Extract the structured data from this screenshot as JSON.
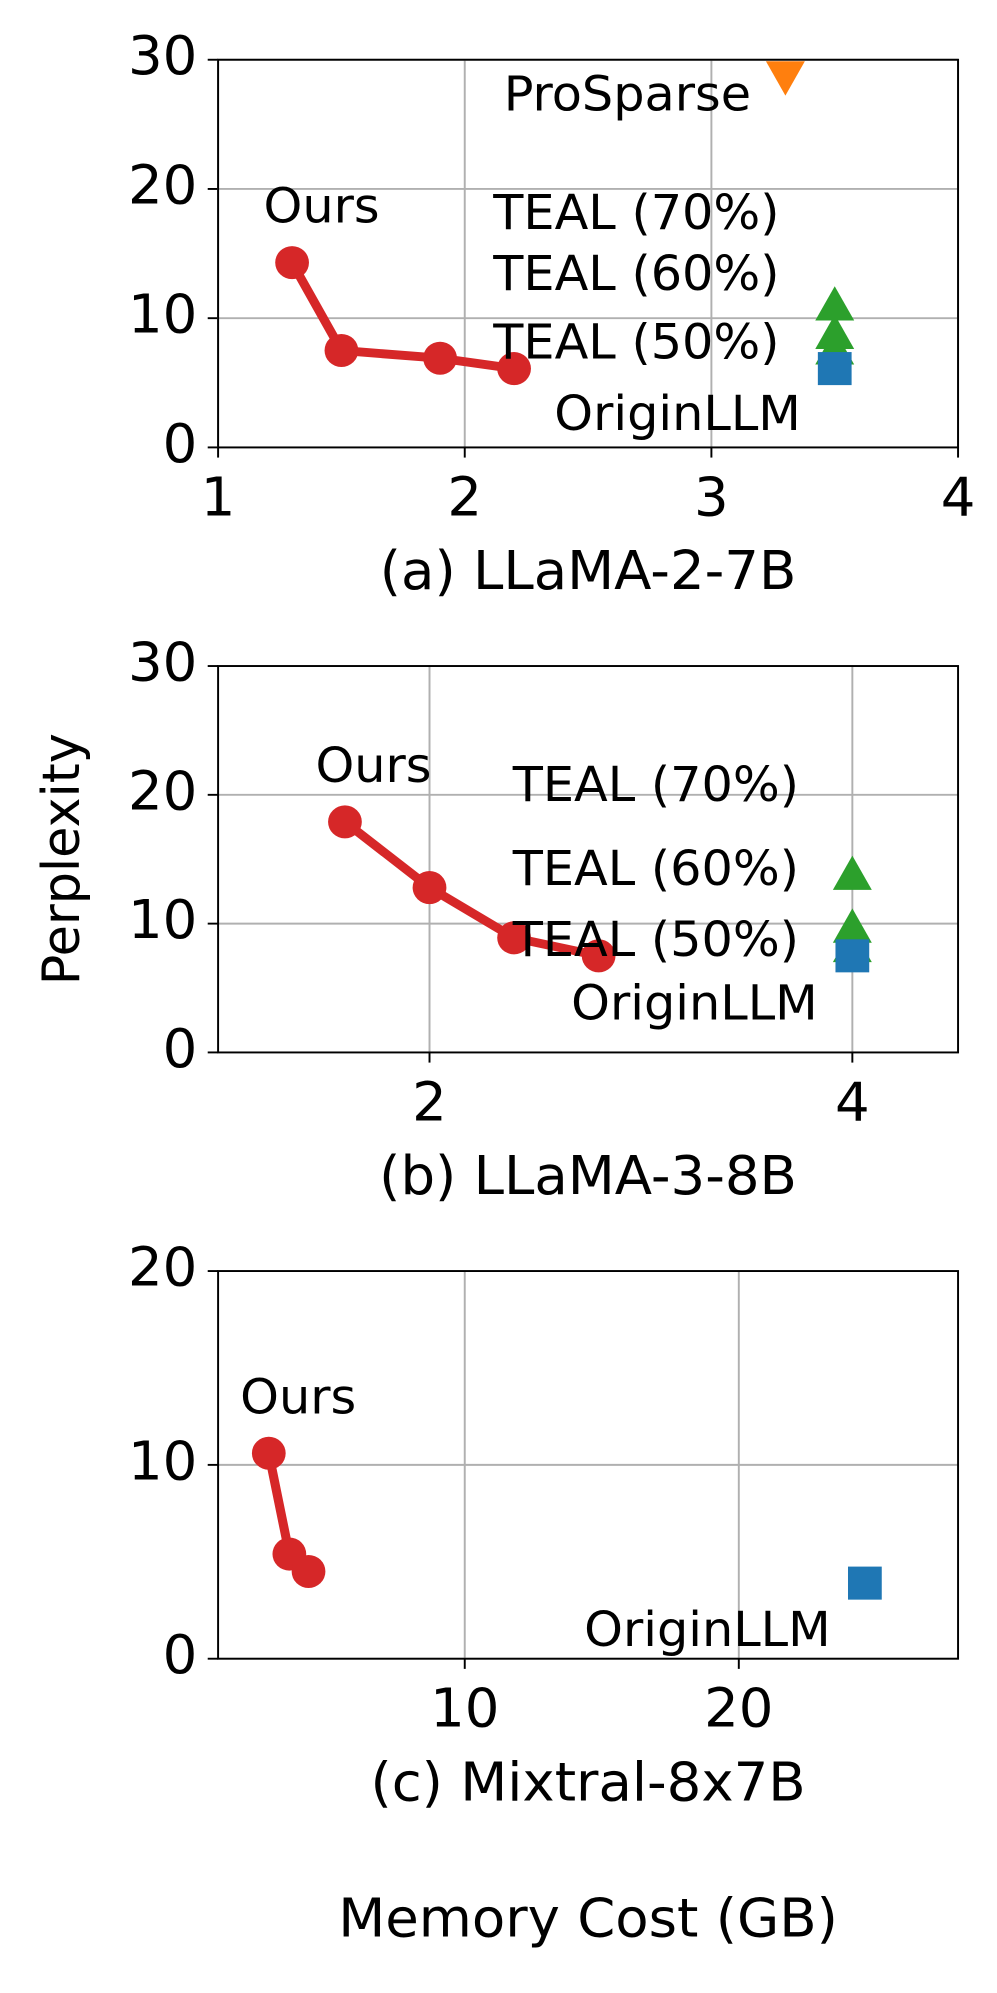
{
  "xlabel": "Memory Cost (GB)",
  "ylabel": "Perplexity",
  "chart_data": [
    {
      "type": "scatter",
      "title": "(a) LLaMA-2-7B",
      "xlim": [
        1,
        4
      ],
      "ylim": [
        0,
        30
      ],
      "xticks": [
        1,
        2,
        3,
        4
      ],
      "yticks": [
        0,
        10,
        20,
        30
      ],
      "grid": true,
      "series": [
        {
          "name": "Ours",
          "color": "#d62728",
          "marker": "circle",
          "line": true,
          "x": [
            1.3,
            1.5,
            1.9,
            2.2
          ],
          "values": [
            14.3,
            7.5,
            6.9,
            6.1
          ]
        },
        {
          "name": "ProSparse",
          "color": "#ff7f0e",
          "marker": "triangle-down",
          "line": false,
          "x": [
            3.3
          ],
          "values": [
            28.7
          ]
        },
        {
          "name": "TEAL (70%)",
          "color": "#2ca02c",
          "marker": "triangle-up",
          "line": false,
          "x": [
            3.5
          ],
          "values": [
            11.0
          ]
        },
        {
          "name": "TEAL (60%)",
          "color": "#2ca02c",
          "marker": "triangle-up",
          "line": false,
          "x": [
            3.5
          ],
          "values": [
            8.8
          ]
        },
        {
          "name": "TEAL (50%)",
          "color": "#2ca02c",
          "marker": "triangle-up",
          "line": false,
          "x": [
            3.5
          ],
          "values": [
            7.6
          ]
        },
        {
          "name": "OriginLLM",
          "color": "#1f77b4",
          "marker": "square",
          "line": false,
          "x": [
            3.5
          ],
          "values": [
            6.1
          ]
        }
      ]
    },
    {
      "type": "scatter",
      "title": "(b) LLaMA-3-8B",
      "xlim": [
        1,
        4.5
      ],
      "ylim": [
        0,
        30
      ],
      "xticks": [
        2,
        4
      ],
      "yticks": [
        0,
        10,
        20,
        30
      ],
      "grid": true,
      "series": [
        {
          "name": "Ours",
          "color": "#d62728",
          "marker": "circle",
          "line": true,
          "x": [
            1.6,
            2.0,
            2.4,
            2.8
          ],
          "values": [
            17.9,
            12.8,
            8.9,
            7.5
          ]
        },
        {
          "name": "TEAL (70%)",
          "color": "#2ca02c",
          "marker": "triangle-up",
          "line": false,
          "x": [
            4.0
          ],
          "values": [
            13.8
          ]
        },
        {
          "name": "TEAL (60%)",
          "color": "#2ca02c",
          "marker": "triangle-up",
          "line": false,
          "x": [
            4.0
          ],
          "values": [
            9.7
          ]
        },
        {
          "name": "TEAL (50%)",
          "color": "#2ca02c",
          "marker": "triangle-up",
          "line": false,
          "x": [
            4.0
          ],
          "values": [
            8.2
          ]
        },
        {
          "name": "OriginLLM",
          "color": "#1f77b4",
          "marker": "square",
          "line": false,
          "x": [
            4.0
          ],
          "values": [
            7.5
          ]
        }
      ]
    },
    {
      "type": "scatter",
      "title": "(c) Mixtral-8x7B",
      "xlim": [
        1,
        28
      ],
      "ylim": [
        0,
        20
      ],
      "xticks": [
        10,
        20
      ],
      "yticks": [
        0,
        10,
        20
      ],
      "grid": true,
      "series": [
        {
          "name": "Ours",
          "color": "#d62728",
          "marker": "circle",
          "line": true,
          "x": [
            2.85,
            3.6,
            4.3
          ],
          "values": [
            10.6,
            5.4,
            4.5
          ]
        },
        {
          "name": "OriginLLM",
          "color": "#1f77b4",
          "marker": "square",
          "line": false,
          "x": [
            24.6
          ],
          "values": [
            3.9
          ]
        }
      ]
    }
  ]
}
